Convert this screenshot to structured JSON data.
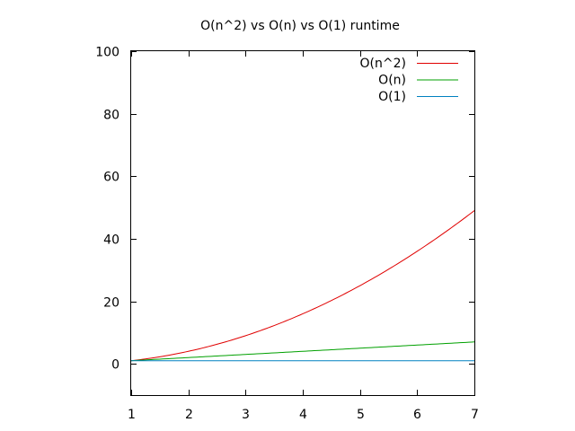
{
  "chart_data": {
    "type": "line",
    "title": "O(n^2) vs O(n) vs O(1) runtime",
    "xlabel": "",
    "ylabel": "",
    "xlim": [
      1,
      7
    ],
    "ylim": [
      -10,
      100
    ],
    "x_ticks": [
      1,
      2,
      3,
      4,
      5,
      6,
      7
    ],
    "y_ticks": [
      0,
      20,
      40,
      60,
      80,
      100
    ],
    "grid": false,
    "legend_position": "top-right",
    "series": [
      {
        "name": "O(n^2)",
        "function": "n^2",
        "color": "#e00000",
        "x": [
          1,
          1.5,
          2,
          2.5,
          3,
          3.5,
          4,
          4.5,
          5,
          5.5,
          6,
          6.5,
          7
        ],
        "y": [
          1,
          2.25,
          4,
          6.25,
          9,
          12.25,
          16,
          20.25,
          25,
          30.25,
          36,
          42.25,
          49
        ]
      },
      {
        "name": "O(n)",
        "function": "n",
        "color": "#00a000",
        "x": [
          1,
          7
        ],
        "y": [
          1,
          7
        ]
      },
      {
        "name": "O(1)",
        "function": "1",
        "color": "#0080c0",
        "x": [
          1,
          7
        ],
        "y": [
          1,
          1
        ]
      }
    ]
  }
}
